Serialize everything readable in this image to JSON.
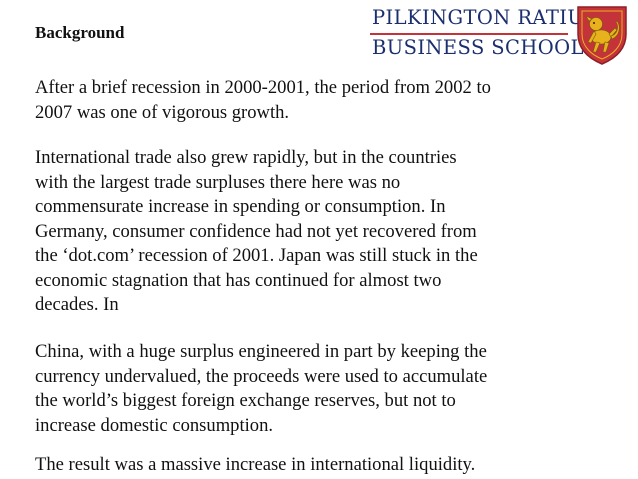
{
  "slide": {
    "heading": "Background",
    "logo": {
      "line1": "PILKINGTON RATIU",
      "line2": "BUSINESS SCHOOL",
      "crest_icon": "lion-shield-icon",
      "colors": {
        "text": "#1b2f6e",
        "rule": "#c4333a",
        "shield": "#c4333a",
        "lion": "#e8b21f"
      }
    },
    "paragraphs": [
      {
        "lines": [
          "After a brief recession in 2000-2001, the period from 2002 to",
          "2007 was one of vigorous growth."
        ]
      },
      {
        "lines": [
          "International trade also grew rapidly, but in the countries",
          "with the largest trade surpluses there here was no",
          "commensurate increase in spending or consumption. In",
          "Germany, consumer confidence had not yet recovered from",
          "the ‘dot.com’ recession of 2001. Japan was still stuck in the",
          "economic stagnation that has continued for almost two",
          "decades. In"
        ]
      },
      {
        "lines": [
          "China, with a huge surplus engineered in part by keeping the",
          "currency undervalued, the proceeds were used to accumulate",
          "the world’s biggest foreign exchange reserves, but not to",
          "increase domestic consumption."
        ]
      },
      {
        "lines": [
          "The result was a massive increase in international liquidity."
        ]
      }
    ]
  }
}
